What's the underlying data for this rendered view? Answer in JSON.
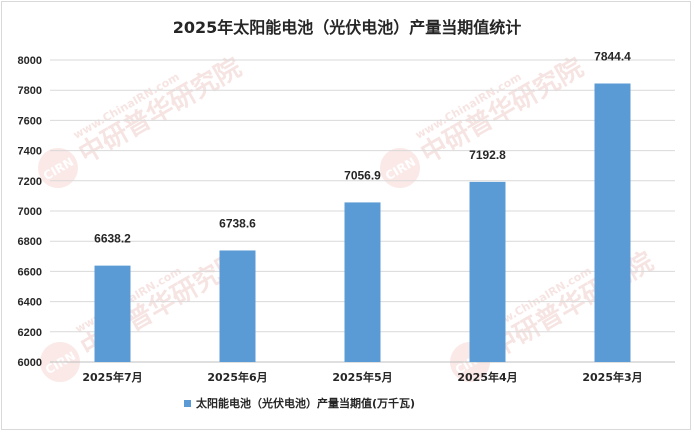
{
  "chart_data": {
    "type": "bar",
    "title": "2025年太阳能电池（光伏电池）产量当期值统计",
    "categories": [
      "2025年7月",
      "2025年6月",
      "2025年5月",
      "2025年4月",
      "2025年3月"
    ],
    "series": [
      {
        "name": "太阳能电池（光伏电池）产量当期值(万千瓦)",
        "values": [
          6638.2,
          6738.6,
          7056.9,
          7192.8,
          7844.4
        ]
      }
    ],
    "ylim": [
      6000,
      8000
    ],
    "yticks": [
      6000,
      6200,
      6400,
      6600,
      6800,
      7000,
      7200,
      7400,
      7600,
      7800,
      8000
    ],
    "grid": true,
    "legend_position": "bottom",
    "bar_color": "#5b9bd5"
  },
  "watermark": {
    "logo": "CIRN",
    "cn": "中研普华研究院",
    "url": "www.ChinaIRN.com"
  }
}
